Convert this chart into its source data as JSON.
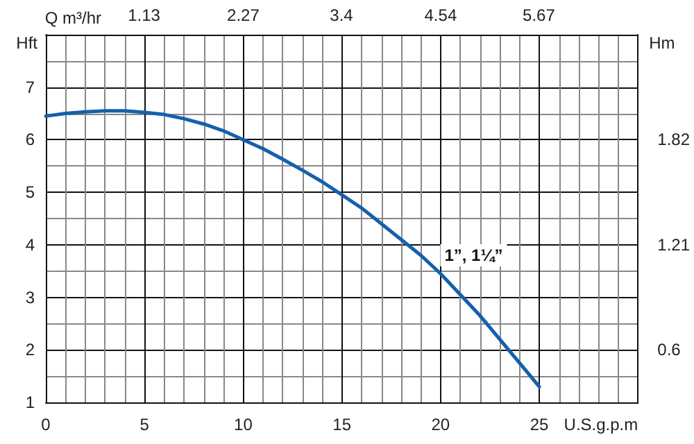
{
  "chart_data": {
    "type": "line",
    "xlabel": "U.S.g.p.m",
    "ylabel": "Hft",
    "y2label": "Hm",
    "x2label": "Q m³/hr",
    "x": [
      0,
      1,
      2,
      3,
      4,
      5,
      6,
      7,
      8,
      9,
      10,
      11,
      12,
      13,
      14,
      15,
      16,
      17,
      18,
      19,
      20,
      21,
      22,
      23,
      24,
      25
    ],
    "series": [
      {
        "name": "1”, 1¼”",
        "color": "#1560ac",
        "values": [
          6.45,
          6.5,
          6.53,
          6.55,
          6.55,
          6.52,
          6.48,
          6.4,
          6.3,
          6.17,
          6.0,
          5.83,
          5.63,
          5.42,
          5.2,
          4.95,
          4.7,
          4.4,
          4.1,
          3.8,
          3.45,
          3.05,
          2.65,
          2.2,
          1.75,
          1.3
        ]
      }
    ],
    "xlim": [
      0,
      30
    ],
    "xticks": [
      0,
      5,
      10,
      15,
      20,
      25
    ],
    "ylim": [
      1,
      8
    ],
    "yticks": [
      1,
      2,
      3,
      4,
      5,
      6,
      7
    ],
    "x2lim": [
      0,
      6.81
    ],
    "x2ticks": [
      1.13,
      2.27,
      3.4,
      4.54,
      5.67
    ],
    "y2lim": [
      0.295,
      2.43
    ],
    "y2ticks": [
      0.6,
      1.21,
      1.82
    ],
    "grid": true,
    "legend": false,
    "marker": "none",
    "line_style": "solid"
  }
}
